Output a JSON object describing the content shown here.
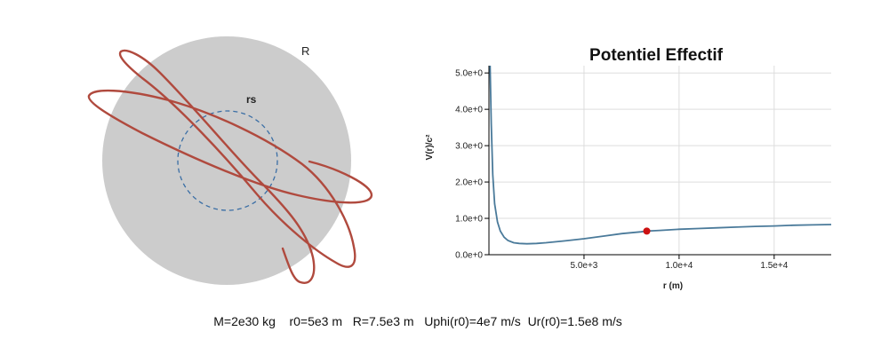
{
  "orbit_panel": {
    "star_label": "R",
    "schwarzschild_label": "rs",
    "colors": {
      "star": "#cccccc",
      "orbit": "#b04a3e",
      "horizon": "#3a6ea5"
    }
  },
  "chart_data": {
    "type": "line",
    "title": "Potentiel Effectif",
    "xlabel": "r (m)",
    "ylabel": "V(r)/c²",
    "xlim": [
      0,
      18000
    ],
    "ylim": [
      0,
      5.2
    ],
    "x_ticks": [
      {
        "value": 5000,
        "label": "5.0e+3"
      },
      {
        "value": 10000,
        "label": "1.0e+4"
      },
      {
        "value": 15000,
        "label": "1.5e+4"
      }
    ],
    "y_ticks": [
      {
        "value": 0,
        "label": "0.0e+0"
      },
      {
        "value": 1,
        "label": "1.0e+0"
      },
      {
        "value": 2,
        "label": "2.0e+0"
      },
      {
        "value": 3,
        "label": "3.0e+0"
      },
      {
        "value": 4,
        "label": "4.0e+0"
      },
      {
        "value": 5,
        "label": "5.0e+0"
      }
    ],
    "grid": true,
    "series": [
      {
        "x": [
          60,
          120,
          200,
          300,
          450,
          600,
          800,
          1000,
          1300,
          1600,
          2000,
          2500,
          3000,
          4000,
          5000,
          6000,
          7000,
          8000,
          8300,
          9000,
          10000,
          11000,
          12000,
          13000,
          14000,
          15000,
          16000,
          17000,
          18000
        ],
        "y": [
          5.2,
          3.6,
          2.2,
          1.4,
          0.9,
          0.65,
          0.48,
          0.39,
          0.33,
          0.31,
          0.3,
          0.31,
          0.33,
          0.38,
          0.44,
          0.51,
          0.58,
          0.63,
          0.65,
          0.67,
          0.7,
          0.72,
          0.74,
          0.76,
          0.78,
          0.79,
          0.81,
          0.82,
          0.83
        ],
        "color": "#4a7a9a"
      }
    ],
    "marker": {
      "x": 8300,
      "y": 0.65,
      "color": "#cc1111"
    }
  },
  "parameters": [
    "M=2e30 kg",
    "r0=5e3 m",
    "R=7.5e3 m",
    "Uphi(r0)=4e7 m/s",
    "Ur(r0)=1.5e8 m/s"
  ]
}
